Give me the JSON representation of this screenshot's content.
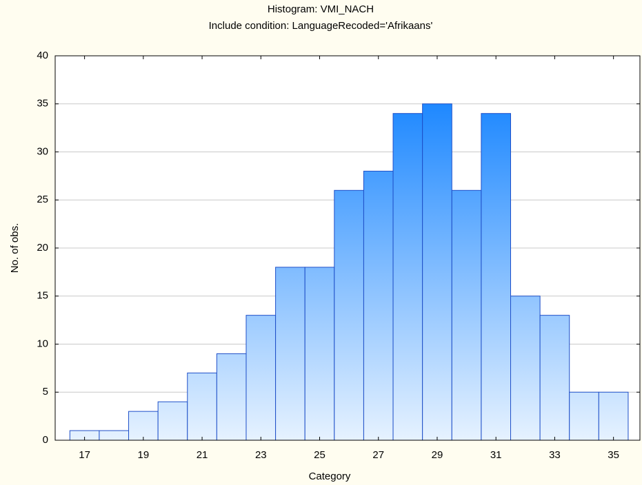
{
  "chart_data": {
    "type": "histogram",
    "title": "Histogram: VMI_NACH",
    "subtitle": "Include condition: LanguageRecoded='Afrikaans'",
    "xlabel": "Category",
    "ylabel": "No. of obs.",
    "bins": [
      16.5,
      17.5,
      18.5,
      19.5,
      20.5,
      21.5,
      22.5,
      23.5,
      24.5,
      25.5,
      26.5,
      27.5,
      28.5,
      29.5,
      30.5,
      31.5,
      32.5,
      33.5,
      34.5,
      35.5
    ],
    "values": [
      1,
      1,
      3,
      4,
      7,
      9,
      13,
      18,
      18,
      26,
      28,
      34,
      35,
      26,
      34,
      15,
      13,
      5,
      5
    ],
    "color": "#1e88ff",
    "xlim": [
      16,
      35.9
    ],
    "xticks": [
      17,
      19,
      21,
      23,
      25,
      27,
      29,
      31,
      33,
      35
    ],
    "ylim": [
      0,
      40
    ],
    "yticks": [
      0,
      5,
      10,
      15,
      20,
      25,
      30,
      35,
      40
    ],
    "grid": true
  }
}
